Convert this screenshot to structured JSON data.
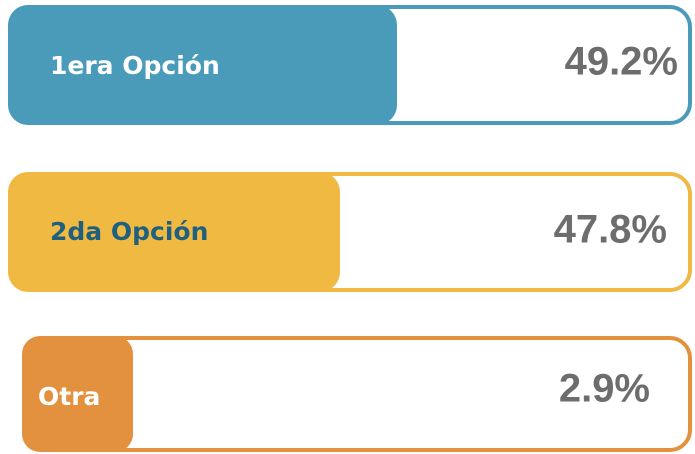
{
  "items": [
    {
      "label": "1era Opción",
      "value": "49.2%"
    },
    {
      "label": "2da Opción",
      "value": "47.8%"
    },
    {
      "label": "Otra",
      "value": "2.9%"
    }
  ]
}
